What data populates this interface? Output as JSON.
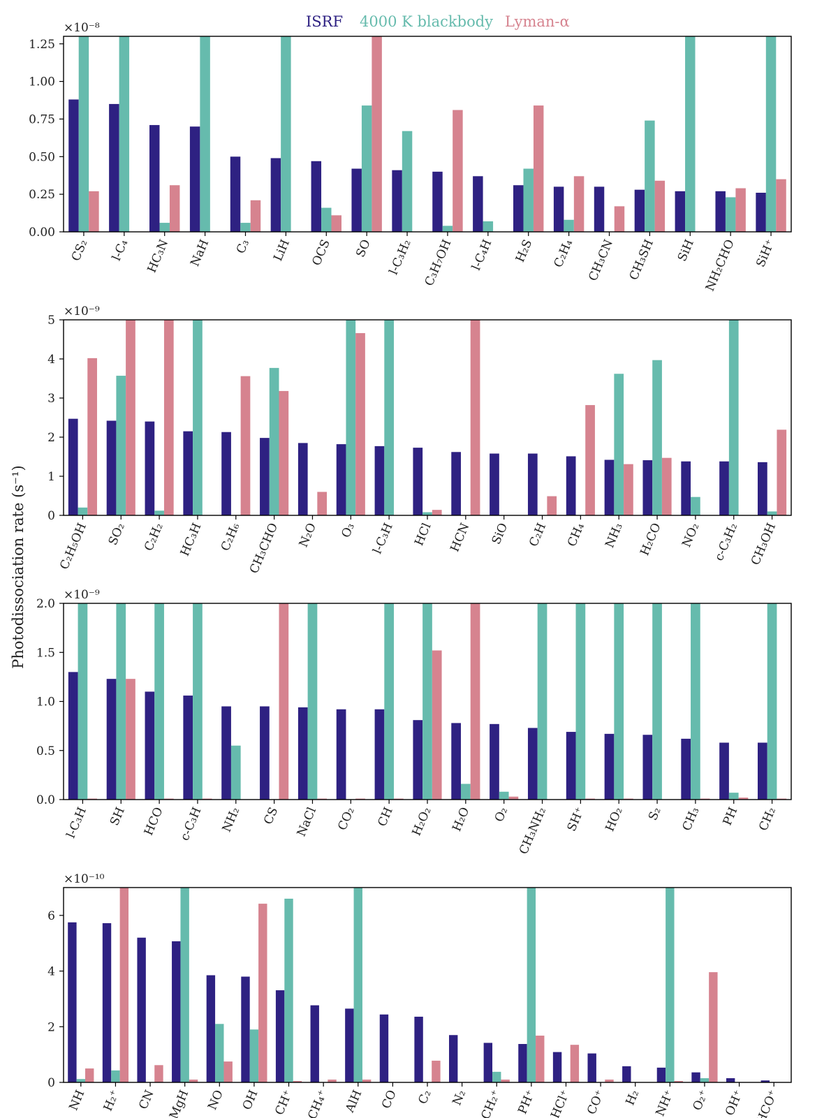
{
  "colors": {
    "isrf": "#2e2182",
    "bb": "#66bbad",
    "lya": "#d6838f",
    "axis": "#000000"
  },
  "legend": {
    "isrf": "ISRF",
    "bb": "4000 K blackbody",
    "lya": "Lyman-α"
  },
  "ylabel": "Photodissociation rate (s⁻¹)",
  "chart_data": [
    {
      "type": "bar",
      "multiplier": "×10⁻⁸",
      "ylim": [
        0,
        1.3
      ],
      "yticks": [
        0,
        0.25,
        0.5,
        0.75,
        1.0,
        1.25
      ],
      "ytick_labels": [
        "0.00",
        "0.25",
        "0.50",
        "0.75",
        "1.00",
        "1.25"
      ],
      "categories": [
        "CS₂",
        "l-C₄",
        "HC₃N",
        "NaH",
        "C₃",
        "LiH",
        "OCS",
        "SO",
        "l-C₃H₂",
        "C₃H₇OH",
        "l-C₄H",
        "H₂S",
        "C₂H₄",
        "CH₃CN",
        "CH₃SH",
        "SiH",
        "NH₂CHO",
        "SiH⁺"
      ],
      "series": [
        {
          "name": "ISRF",
          "values": [
            0.88,
            0.85,
            0.71,
            0.7,
            0.5,
            0.49,
            0.47,
            0.42,
            0.41,
            0.4,
            0.37,
            0.31,
            0.3,
            0.3,
            0.28,
            0.27,
            0.27,
            0.26
          ]
        },
        {
          "name": "4000 K blackbody",
          "values": [
            1.3,
            1.3,
            0.06,
            1.3,
            0.06,
            1.3,
            0.16,
            0.84,
            0.67,
            0.04,
            0.07,
            0.42,
            0.08,
            0.0,
            0.74,
            1.3,
            0.23,
            1.3
          ]
        },
        {
          "name": "Lyman-α",
          "values": [
            0.27,
            0.0,
            0.31,
            0.0,
            0.21,
            0.0,
            0.11,
            1.3,
            0.0,
            0.81,
            0.0,
            0.84,
            0.37,
            0.17,
            0.34,
            0.0,
            0.29,
            0.35
          ]
        }
      ]
    },
    {
      "type": "bar",
      "multiplier": "×10⁻⁹",
      "ylim": [
        0,
        5
      ],
      "yticks": [
        0,
        1,
        2,
        3,
        4,
        5
      ],
      "ytick_labels": [
        "0",
        "1",
        "2",
        "3",
        "4",
        "5"
      ],
      "categories": [
        "C₂H₅OH",
        "SO₂",
        "C₂H₂",
        "HC₃H",
        "C₂H₆",
        "CH₃CHO",
        "N₂O",
        "O₃",
        "l-C₃H",
        "HCl",
        "HCN",
        "SiO",
        "C₂H",
        "CH₄",
        "NH₃",
        "H₂CO",
        "NO₂",
        "c-C₃H₂",
        "CH₃OH"
      ],
      "series": [
        {
          "name": "ISRF",
          "values": [
            2.47,
            2.42,
            2.4,
            2.15,
            2.13,
            1.98,
            1.85,
            1.82,
            1.77,
            1.73,
            1.62,
            1.58,
            1.58,
            1.51,
            1.42,
            1.41,
            1.38,
            1.38,
            1.36
          ]
        },
        {
          "name": "4000 K blackbody",
          "values": [
            0.2,
            3.57,
            0.12,
            5.0,
            0.0,
            3.77,
            0.0,
            5.0,
            5.0,
            0.08,
            0.0,
            0.0,
            0.0,
            0.0,
            3.62,
            3.97,
            0.47,
            5.0,
            0.1
          ]
        },
        {
          "name": "Lyman-α",
          "values": [
            4.02,
            5.0,
            5.0,
            0.0,
            3.56,
            3.18,
            0.6,
            4.66,
            0.0,
            0.14,
            5.0,
            0.0,
            0.49,
            2.82,
            1.31,
            1.47,
            0.0,
            0.0,
            2.19
          ]
        }
      ]
    },
    {
      "type": "bar",
      "multiplier": "×10⁻⁹",
      "ylim": [
        0,
        2.0
      ],
      "yticks": [
        0,
        0.5,
        1.0,
        1.5,
        2.0
      ],
      "ytick_labels": [
        "0.0",
        "0.5",
        "1.0",
        "1.5",
        "2.0"
      ],
      "categories": [
        "l-C₃H",
        "SH",
        "HCO",
        "c-C₃H",
        "NH₂",
        "CS",
        "NaCl",
        "CO₂",
        "CH",
        "H₂O₂",
        "H₂O",
        "O₂",
        "CH₃NH₂",
        "SH⁺",
        "HO₂",
        "S₂",
        "CH₃",
        "PH",
        "CH₂"
      ],
      "series": [
        {
          "name": "ISRF",
          "values": [
            1.3,
            1.23,
            1.1,
            1.06,
            0.95,
            0.95,
            0.94,
            0.92,
            0.92,
            0.81,
            0.78,
            0.77,
            0.73,
            0.69,
            0.67,
            0.66,
            0.62,
            0.58,
            0.58
          ]
        },
        {
          "name": "4000 K blackbody",
          "values": [
            2.0,
            2.0,
            2.0,
            2.0,
            0.55,
            0.0,
            2.0,
            0.0,
            2.0,
            2.0,
            0.16,
            0.08,
            2.0,
            2.0,
            2.0,
            2.0,
            2.0,
            0.07,
            2.0
          ]
        },
        {
          "name": "Lyman-α",
          "values": [
            0.01,
            1.23,
            0.01,
            0.01,
            0.0,
            2.0,
            0.01,
            0.01,
            0.01,
            1.52,
            2.0,
            0.03,
            0.0,
            0.01,
            0.01,
            0.0,
            0.01,
            0.02,
            0.01
          ]
        }
      ]
    },
    {
      "type": "bar",
      "multiplier": "×10⁻¹⁰",
      "ylim": [
        0,
        7
      ],
      "yticks": [
        0,
        2,
        4,
        6
      ],
      "ytick_labels": [
        "0",
        "2",
        "4",
        "6"
      ],
      "categories": [
        "NH",
        "H₂⁺",
        "CN",
        "MgH",
        "NO",
        "OH",
        "CH⁺",
        "CH₄⁺",
        "AlH",
        "CO",
        "C₂",
        "N₂",
        "CH₂⁺",
        "PH⁺",
        "HCl⁺",
        "CO⁺",
        "H₂",
        "NH⁺",
        "O₂⁺",
        "OH⁺",
        "HCO⁺"
      ],
      "series": [
        {
          "name": "ISRF",
          "values": [
            5.75,
            5.72,
            5.2,
            5.07,
            3.85,
            3.8,
            3.31,
            2.77,
            2.65,
            2.44,
            2.36,
            1.7,
            1.42,
            1.38,
            1.09,
            1.04,
            0.58,
            0.53,
            0.36,
            0.15,
            0.07
          ]
        },
        {
          "name": "4000 K blackbody",
          "values": [
            0.12,
            0.43,
            0.0,
            7.0,
            2.1,
            1.9,
            6.6,
            0.0,
            7.0,
            0.0,
            0.0,
            0.0,
            0.38,
            7.0,
            0.0,
            0.0,
            0.0,
            7.0,
            0.15,
            0.0,
            0.0
          ]
        },
        {
          "name": "Lyman-α",
          "values": [
            0.5,
            7.0,
            0.62,
            0.1,
            0.75,
            6.42,
            0.05,
            0.1,
            0.1,
            0.0,
            0.78,
            0.0,
            0.1,
            1.68,
            1.35,
            0.1,
            0.0,
            0.05,
            3.96,
            0.0,
            0.0
          ]
        }
      ]
    }
  ]
}
